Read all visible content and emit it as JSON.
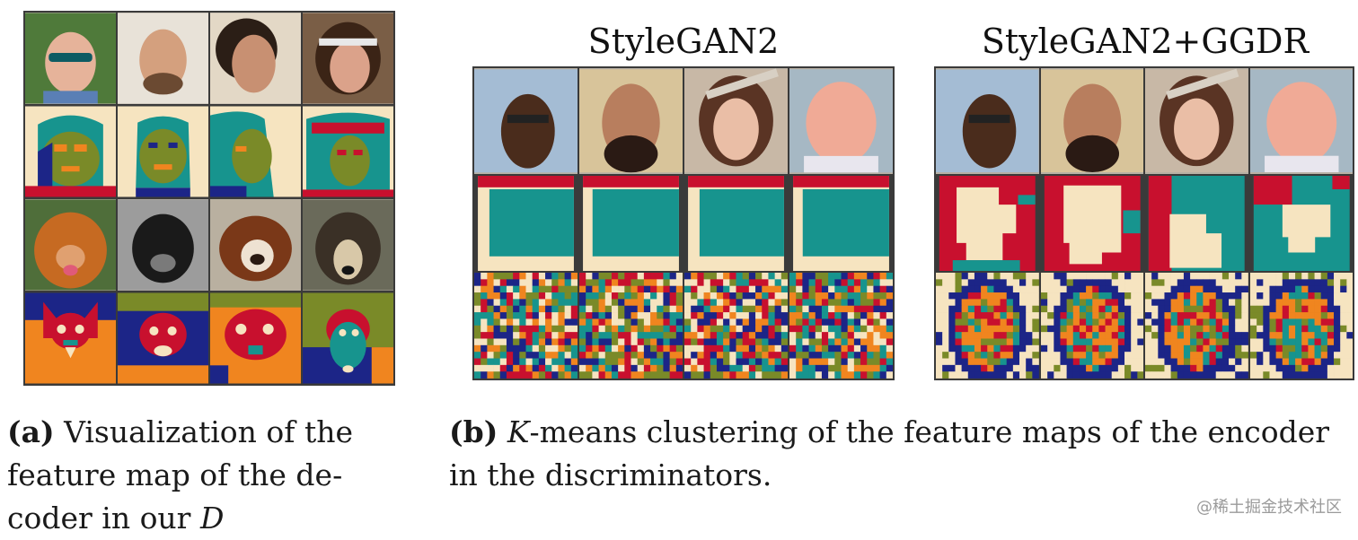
{
  "figure": {
    "panel_a": {
      "tag": "(a)",
      "caption_lines": [
        "Visualization of the",
        "feature map of the de-",
        "coder in our "
      ],
      "caption_var": "D",
      "rows": [
        {
          "kind": "photo",
          "subject": "human-face",
          "count": 4
        },
        {
          "kind": "segmentation",
          "count": 4
        },
        {
          "kind": "photo",
          "subject": "dog-face",
          "count": 4
        },
        {
          "kind": "segmentation",
          "count": 4
        }
      ]
    },
    "panel_b": {
      "tag": "(b)",
      "caption_var": "K",
      "caption_rest_1": "-means clustering of the feature maps of the encoder",
      "caption_line_2": "in the discriminators.",
      "groups": [
        {
          "title": "StyleGAN2",
          "rows": [
            "photo",
            "coarse-cluster-map",
            "fine-cluster-map"
          ]
        },
        {
          "title": "StyleGAN2+GGDR",
          "rows": [
            "photo",
            "coarse-cluster-map",
            "fine-cluster-map"
          ]
        }
      ]
    },
    "palette": {
      "cream": "#f6e4c0",
      "navy": "#1c2587",
      "olive": "#7a8a28",
      "teal": "#17948e",
      "red": "#c8102e",
      "orange": "#f0851f"
    },
    "watermark": "@稀土掘金技术社区"
  }
}
